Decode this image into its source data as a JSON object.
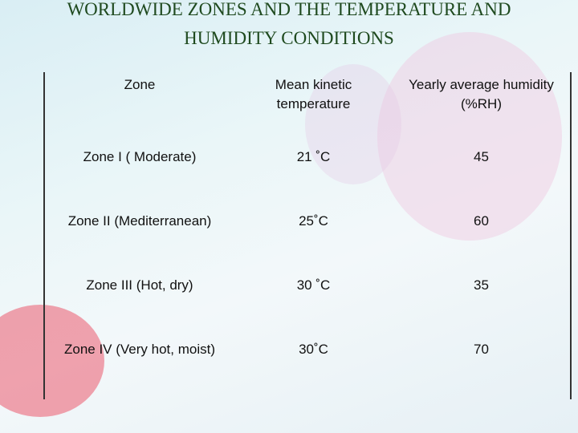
{
  "header": {
    "title_lines": [
      "WORLDWIDE ZONES AND THE TEMPERATURE AND",
      "HUMIDITY CONDITIONS"
    ]
  },
  "table": {
    "columns": [
      "Zone",
      "Mean kinetic temperature",
      "Yearly average humidity (%RH)"
    ],
    "rows": [
      [
        "Zone I ( Moderate)",
        "21 ˚C",
        "45"
      ],
      [
        "Zone II (Mediterranean)",
        "25˚C",
        "60"
      ],
      [
        "Zone III (Hot, dry)",
        "30 ˚C",
        "35"
      ],
      [
        "Zone  IV (Very hot, moist)",
        "30˚C",
        "70"
      ]
    ]
  }
}
